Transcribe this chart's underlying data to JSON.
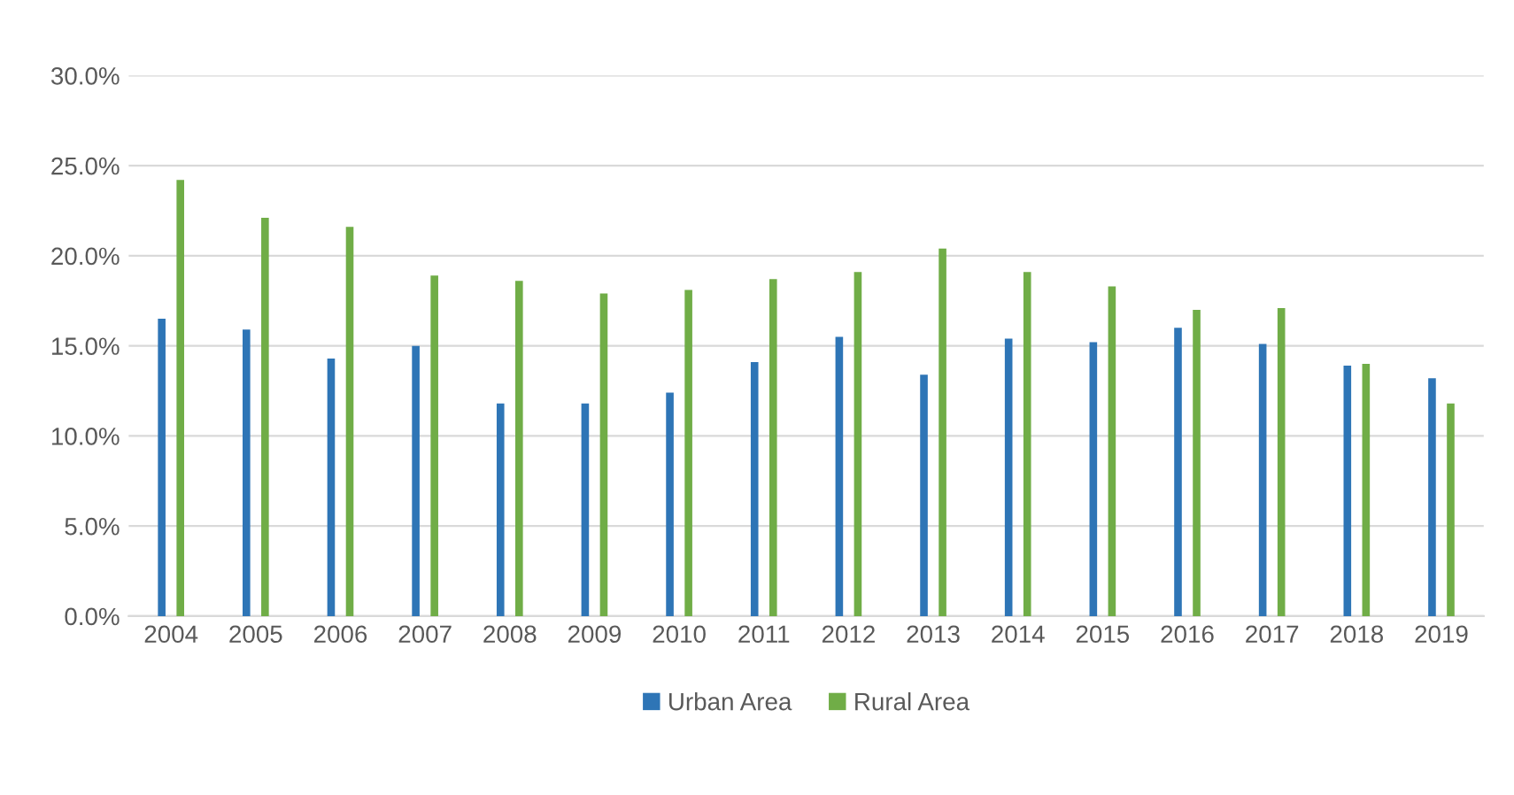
{
  "chart_data": {
    "type": "bar",
    "categories": [
      "2004",
      "2005",
      "2006",
      "2007",
      "2008",
      "2009",
      "2010",
      "2011",
      "2012",
      "2013",
      "2014",
      "2015",
      "2016",
      "2017",
      "2018",
      "2019"
    ],
    "series": [
      {
        "name": "Urban Area",
        "color": "#2e75b6",
        "values": [
          16.5,
          15.9,
          14.3,
          15.0,
          11.8,
          11.8,
          12.4,
          14.1,
          15.5,
          13.4,
          15.4,
          15.2,
          16.0,
          15.1,
          13.9,
          13.2
        ]
      },
      {
        "name": "Rural Area",
        "color": "#70ad47",
        "values": [
          24.2,
          22.1,
          21.6,
          18.9,
          18.6,
          17.9,
          18.1,
          18.7,
          19.1,
          20.4,
          19.1,
          18.3,
          17.0,
          17.1,
          14.0,
          11.8
        ]
      }
    ],
    "ylim": [
      0,
      30
    ],
    "yticks": [
      {
        "value": 0,
        "label": "0.0%"
      },
      {
        "value": 5,
        "label": "5.0%"
      },
      {
        "value": 10,
        "label": "10.0%"
      },
      {
        "value": 15,
        "label": "15.0%"
      },
      {
        "value": 20,
        "label": "20.0%"
      },
      {
        "value": 25,
        "label": "25.0%"
      },
      {
        "value": 30,
        "label": "30.0%"
      }
    ],
    "grid": "y",
    "legend": "bottom"
  }
}
